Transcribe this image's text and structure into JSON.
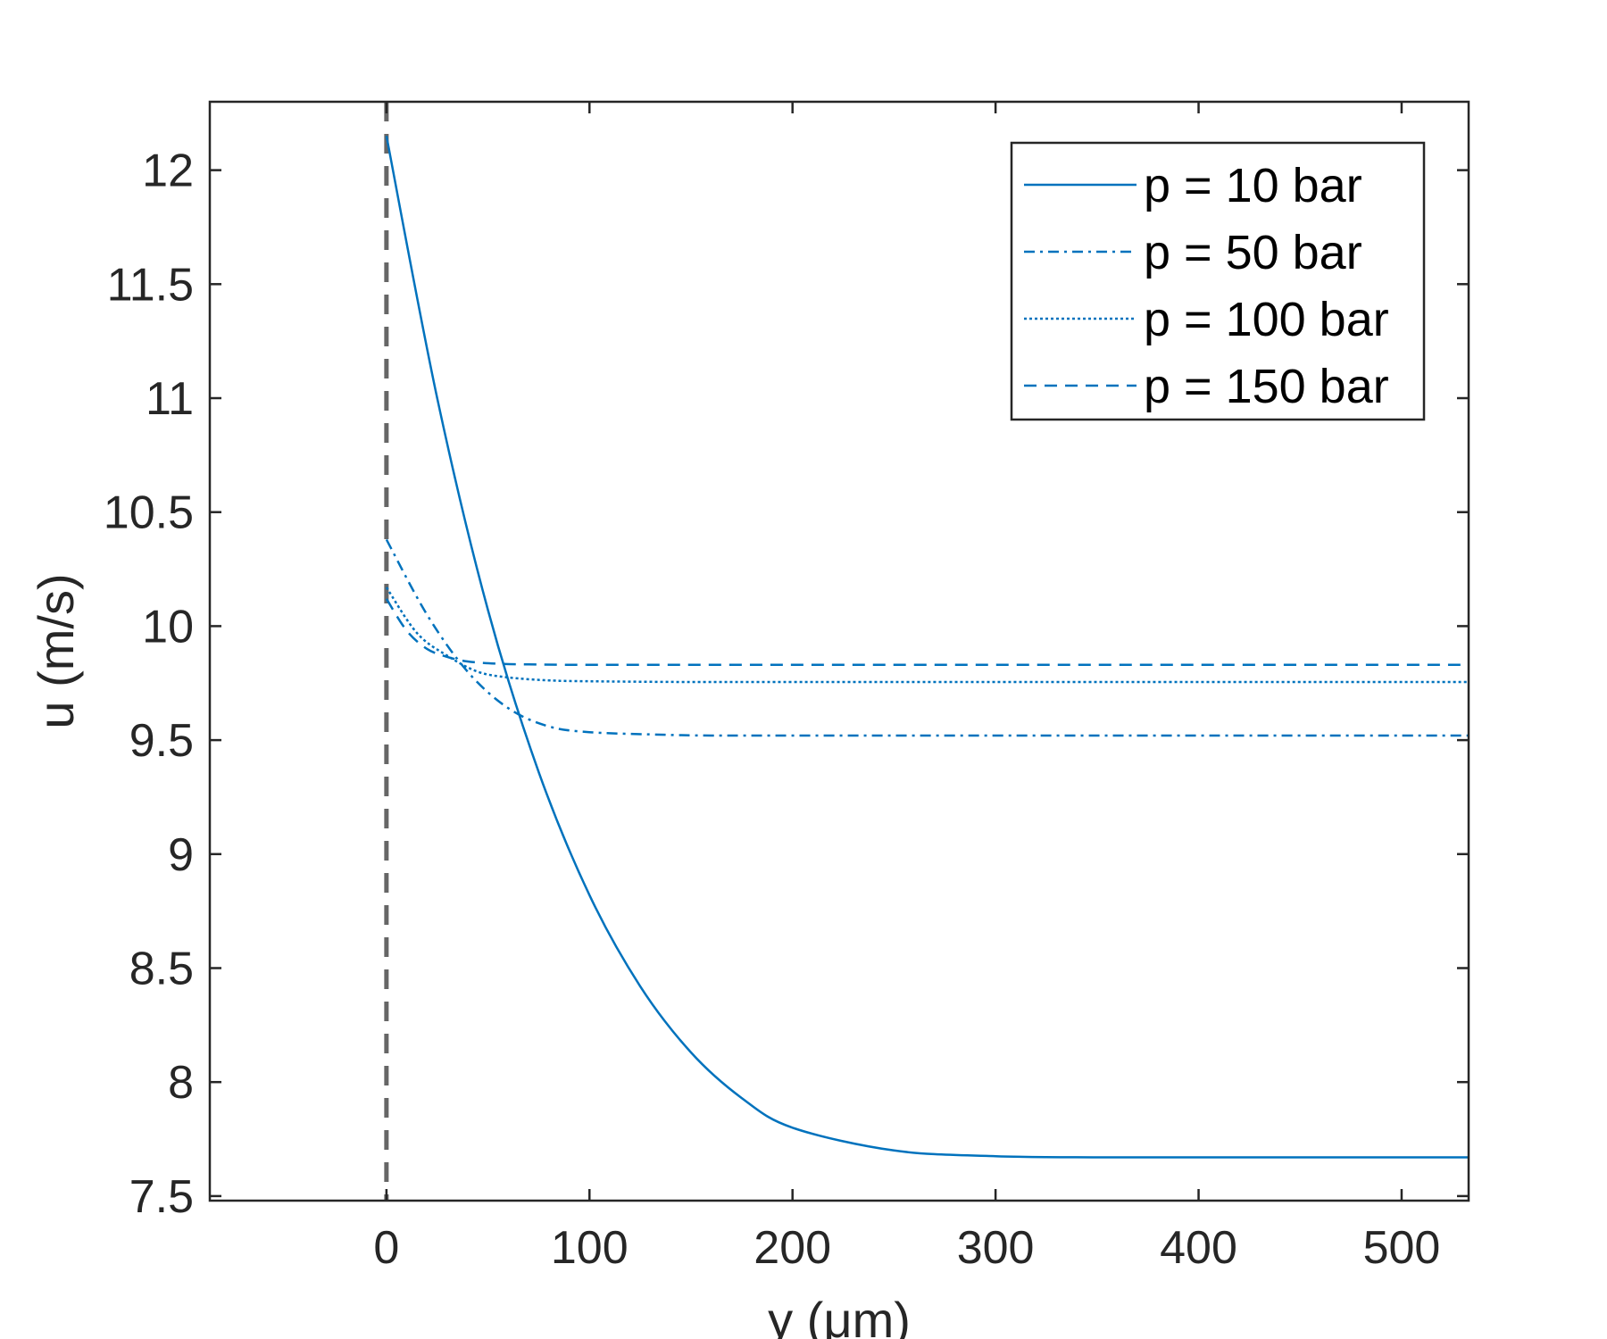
{
  "chart_data": {
    "type": "line",
    "xlabel": "y (μm)",
    "ylabel": "u (m/s)",
    "xlim": [
      -87,
      533
    ],
    "ylim": [
      7.48,
      12.3
    ],
    "x_ticks": [
      "0",
      "100",
      "200",
      "300",
      "400",
      "500"
    ],
    "x_tick_values": [
      0,
      100,
      200,
      300,
      400,
      500
    ],
    "y_ticks": [
      "7.5",
      "8",
      "8.5",
      "9",
      "9.5",
      "10",
      "10.5",
      "11",
      "11.5",
      "12"
    ],
    "y_tick_values": [
      7.5,
      8,
      8.5,
      9,
      9.5,
      10,
      10.5,
      11,
      11.5,
      12
    ],
    "grid": false,
    "legend_position": "top-right",
    "reference_line": {
      "x": 0,
      "style": "dashed",
      "color": "#666666"
    },
    "series": [
      {
        "name": "p = 10 bar",
        "style": "solid",
        "color": "#0072BD",
        "x": [
          0,
          25,
          50,
          75,
          100,
          125,
          150,
          175,
          200,
          250,
          300,
          350,
          400,
          450,
          500,
          533
        ],
        "y": [
          12.15,
          11.0,
          10.07,
          9.36,
          8.82,
          8.42,
          8.13,
          7.93,
          7.8,
          7.7,
          7.675,
          7.67,
          7.67,
          7.67,
          7.67,
          7.67
        ]
      },
      {
        "name": "p = 50 bar",
        "style": "dashdot",
        "color": "#0072BD",
        "x": [
          0,
          20,
          40,
          60,
          80,
          100,
          130,
          160,
          200,
          300,
          400,
          533
        ],
        "y": [
          10.38,
          10.05,
          9.8,
          9.64,
          9.56,
          9.535,
          9.525,
          9.52,
          9.52,
          9.52,
          9.52,
          9.52
        ]
      },
      {
        "name": "p = 100 bar",
        "style": "dotted",
        "color": "#0072BD",
        "x": [
          0,
          15,
          30,
          45,
          60,
          80,
          100,
          150,
          200,
          300,
          533
        ],
        "y": [
          10.17,
          9.97,
          9.87,
          9.8,
          9.775,
          9.762,
          9.758,
          9.755,
          9.755,
          9.755,
          9.755
        ]
      },
      {
        "name": "p = 150 bar",
        "style": "dashed",
        "color": "#0072BD",
        "x": [
          0,
          10,
          20,
          30,
          40,
          55,
          70,
          100,
          200,
          300,
          533
        ],
        "y": [
          10.12,
          9.98,
          9.9,
          9.865,
          9.845,
          9.835,
          9.832,
          9.83,
          9.83,
          9.83,
          9.83
        ]
      }
    ]
  }
}
